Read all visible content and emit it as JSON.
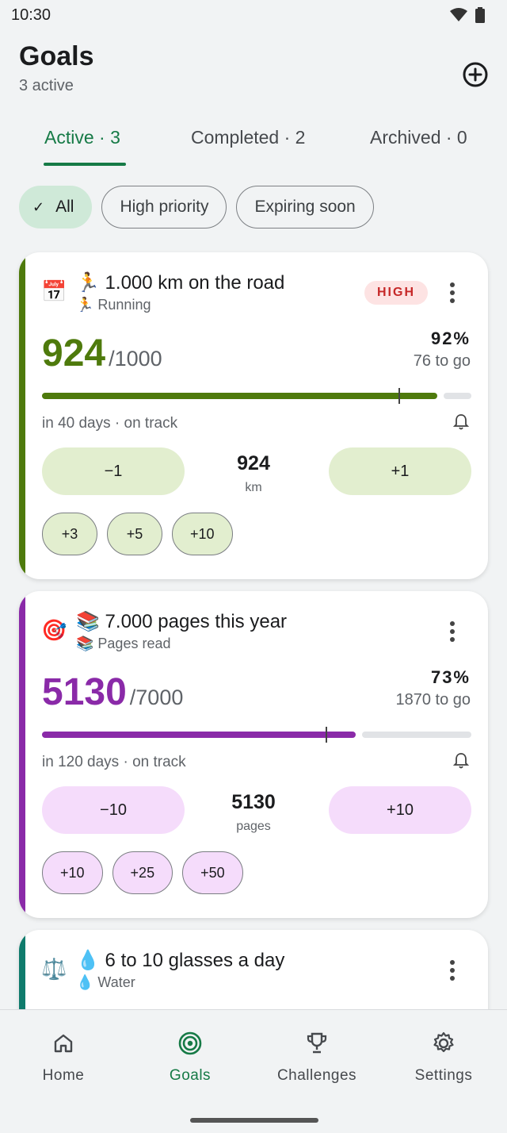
{
  "status": {
    "time": "10:30"
  },
  "header": {
    "title": "Goals",
    "subtitle": "3 active"
  },
  "tabs": [
    {
      "label": "Active · 3",
      "active": true
    },
    {
      "label": "Completed · 2",
      "active": false
    },
    {
      "label": "Archived · 0",
      "active": false
    }
  ],
  "filters": [
    {
      "label": "All",
      "selected": true
    },
    {
      "label": "High priority",
      "selected": false
    },
    {
      "label": "Expiring soon",
      "selected": false
    }
  ],
  "goals": [
    {
      "icon": "📅",
      "title": "🏃 1.000 km on the road",
      "category": "🏃 Running",
      "priority": "HIGH",
      "value": "924",
      "target": "/1000",
      "percent": "92%",
      "progress": 0.92,
      "expected": 0.83,
      "remaining": "76 to go",
      "due": "in 40 days  · on track",
      "minus": "−1",
      "plus": "+1",
      "unit": "km",
      "quick": [
        "+3",
        "+5",
        "+10"
      ],
      "color": "#4e7a0c",
      "btn_color": "#e2eecf",
      "quick_color": "#e2eecf"
    },
    {
      "icon": "🎯",
      "title": "📚 7.000 pages this year",
      "category": "📚 Pages read",
      "priority": "",
      "value": "5130",
      "target": "/7000",
      "percent": "73%",
      "progress": 0.73,
      "expected": 0.66,
      "remaining": "1870 to go",
      "due": "in 120 days  · on track",
      "minus": "−10",
      "plus": "+10",
      "unit": "pages",
      "quick": [
        "+10",
        "+25",
        "+50"
      ],
      "color": "#8a2aa8",
      "btn_color": "#f5dcfb",
      "quick_color": "#f5dcfb"
    },
    {
      "icon": "⚖️",
      "title": "💧 6 to 10 glasses a day",
      "category": "💧 Water",
      "color": "#0f7b6c"
    }
  ],
  "nav": [
    {
      "label": "Home",
      "icon": "home-icon",
      "active": false
    },
    {
      "label": "Goals",
      "icon": "target-icon",
      "active": true
    },
    {
      "label": "Challenges",
      "icon": "trophy-icon",
      "active": false
    },
    {
      "label": "Settings",
      "icon": "gear-icon",
      "active": false
    }
  ]
}
